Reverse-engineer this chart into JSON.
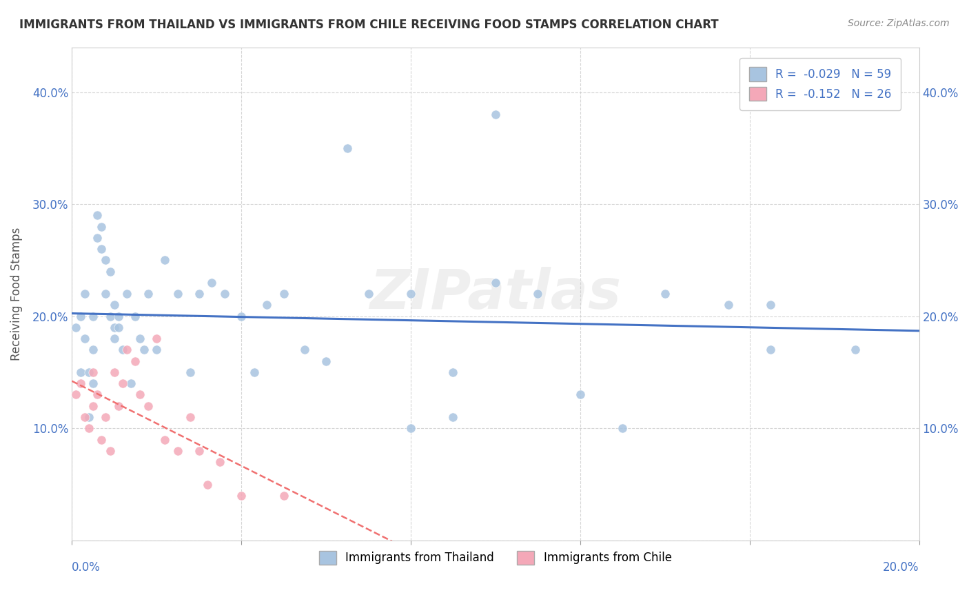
{
  "title": "IMMIGRANTS FROM THAILAND VS IMMIGRANTS FROM CHILE RECEIVING FOOD STAMPS CORRELATION CHART",
  "source": "Source: ZipAtlas.com",
  "ylabel": "Receiving Food Stamps",
  "ytick_vals": [
    0.0,
    0.1,
    0.2,
    0.3,
    0.4
  ],
  "xlim": [
    0.0,
    0.2
  ],
  "ylim": [
    0.0,
    0.44
  ],
  "thailand_color": "#a8c4e0",
  "chile_color": "#f4a8b8",
  "thailand_line_color": "#4472c4",
  "chile_line_color": "#f07070",
  "legend_thailand_label": "R =  -0.029   N = 59",
  "legend_chile_label": "R =  -0.152   N = 26",
  "watermark": "ZIPatlas",
  "thailand_x": [
    0.001,
    0.002,
    0.002,
    0.003,
    0.003,
    0.004,
    0.004,
    0.005,
    0.005,
    0.005,
    0.006,
    0.006,
    0.007,
    0.007,
    0.008,
    0.008,
    0.009,
    0.009,
    0.01,
    0.01,
    0.01,
    0.011,
    0.011,
    0.012,
    0.013,
    0.014,
    0.015,
    0.016,
    0.017,
    0.018,
    0.02,
    0.022,
    0.025,
    0.028,
    0.03,
    0.033,
    0.036,
    0.04,
    0.043,
    0.046,
    0.05,
    0.055,
    0.06,
    0.065,
    0.07,
    0.08,
    0.09,
    0.1,
    0.11,
    0.12,
    0.13,
    0.14,
    0.155,
    0.165,
    0.08,
    0.09,
    0.1,
    0.165,
    0.185
  ],
  "thailand_y": [
    0.19,
    0.2,
    0.15,
    0.18,
    0.22,
    0.15,
    0.11,
    0.17,
    0.2,
    0.14,
    0.27,
    0.29,
    0.26,
    0.28,
    0.25,
    0.22,
    0.24,
    0.2,
    0.19,
    0.18,
    0.21,
    0.2,
    0.19,
    0.17,
    0.22,
    0.14,
    0.2,
    0.18,
    0.17,
    0.22,
    0.17,
    0.25,
    0.22,
    0.15,
    0.22,
    0.23,
    0.22,
    0.2,
    0.15,
    0.21,
    0.22,
    0.17,
    0.16,
    0.35,
    0.22,
    0.22,
    0.15,
    0.38,
    0.22,
    0.13,
    0.1,
    0.22,
    0.21,
    0.17,
    0.1,
    0.11,
    0.23,
    0.21,
    0.17
  ],
  "chile_x": [
    0.001,
    0.002,
    0.003,
    0.004,
    0.005,
    0.005,
    0.006,
    0.007,
    0.008,
    0.009,
    0.01,
    0.011,
    0.012,
    0.013,
    0.015,
    0.016,
    0.018,
    0.02,
    0.022,
    0.025,
    0.028,
    0.03,
    0.032,
    0.035,
    0.04,
    0.05
  ],
  "chile_y": [
    0.13,
    0.14,
    0.11,
    0.1,
    0.15,
    0.12,
    0.13,
    0.09,
    0.11,
    0.08,
    0.15,
    0.12,
    0.14,
    0.17,
    0.16,
    0.13,
    0.12,
    0.18,
    0.09,
    0.08,
    0.11,
    0.08,
    0.05,
    0.07,
    0.04,
    0.04
  ]
}
